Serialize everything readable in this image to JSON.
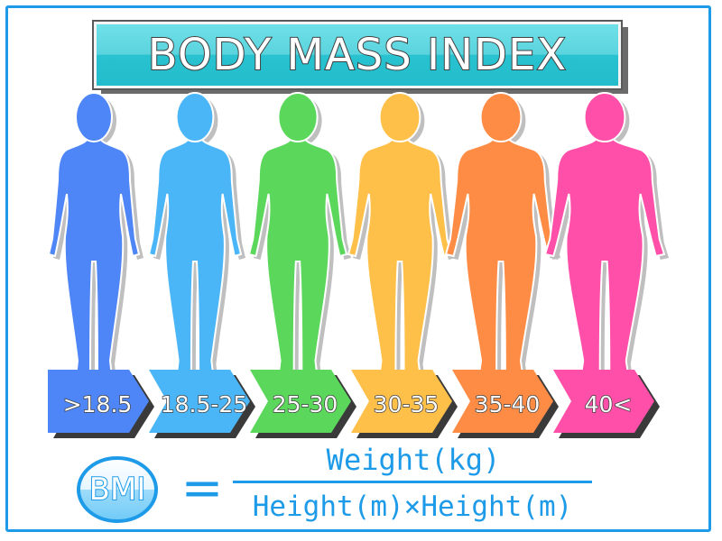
{
  "title": "BODY MASS INDEX",
  "categories": [
    {
      "label": ">18.5",
      "color": "#4f86f7"
    },
    {
      "label": "18.5-25",
      "color": "#4ab6f7"
    },
    {
      "label": "25-30",
      "color": "#5bd85b"
    },
    {
      "label": "30-35",
      "color": "#ffc04a"
    },
    {
      "label": "35-40",
      "color": "#ff8c45"
    },
    {
      "label": "40<",
      "color": "#ff4fa8"
    }
  ],
  "formula": {
    "badge": "BMI",
    "equals": "=",
    "numerator": "Weight(kg)",
    "denominator": "Height(m)×Height(m)"
  },
  "colors": {
    "accent": "#1e9be8",
    "title_fill": "#33c9d6"
  }
}
